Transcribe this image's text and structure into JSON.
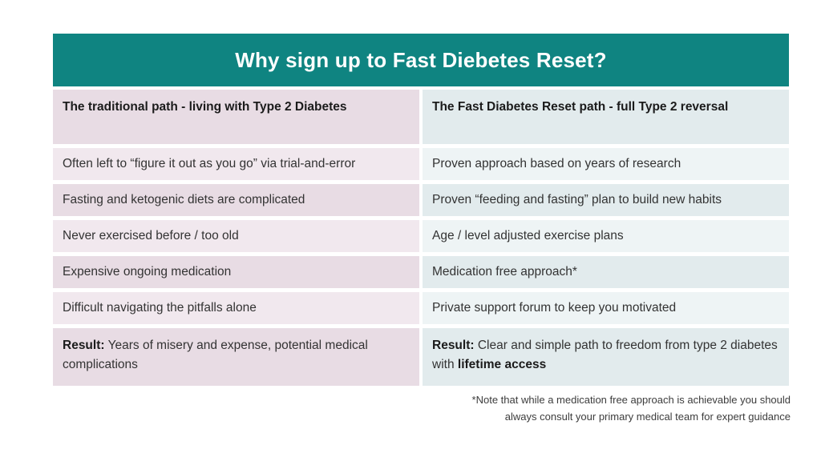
{
  "banner": {
    "title": "Why sign up to Fast Diebetes Reset?",
    "bg_color": "#0f8481",
    "text_color": "#ffffff"
  },
  "table": {
    "headers": [
      "The traditional path - living with Type 2 Diabetes",
      "The Fast Diabetes Reset path - full Type 2 reversal"
    ],
    "left_column_colors": {
      "light": "#f1e8ee",
      "dark": "#e8dce4"
    },
    "right_column_colors": {
      "light": "#eef4f5",
      "dark": "#e2ebed"
    },
    "rows": [
      {
        "left": "Often left to “figure it out as you go” via trial-and-error",
        "right": "Proven approach based on years of research"
      },
      {
        "left": "Fasting and ketogenic diets are complicated",
        "right": "Proven “feeding and fasting” plan to build new habits"
      },
      {
        "left": "Never exercised before / too old",
        "right": "Age / level adjusted exercise plans"
      },
      {
        "left": "Expensive ongoing medication",
        "right": "Medication free approach*"
      },
      {
        "left": "Difficult navigating the pitfalls alone",
        "right": "Private support forum to keep you motivated"
      }
    ],
    "result_row": {
      "left": {
        "label": "Result:",
        "text": "Years of misery and expense, potential medical complications"
      },
      "right": {
        "label": "Result:",
        "text": "Clear and simple path to freedom from type 2 diabetes with",
        "bold_suffix": "lifetime access"
      }
    }
  },
  "footnote": {
    "lines": [
      "*Note that while a medication free approach is achievable you should",
      "always consult your primary medical team for expert guidance"
    ]
  }
}
